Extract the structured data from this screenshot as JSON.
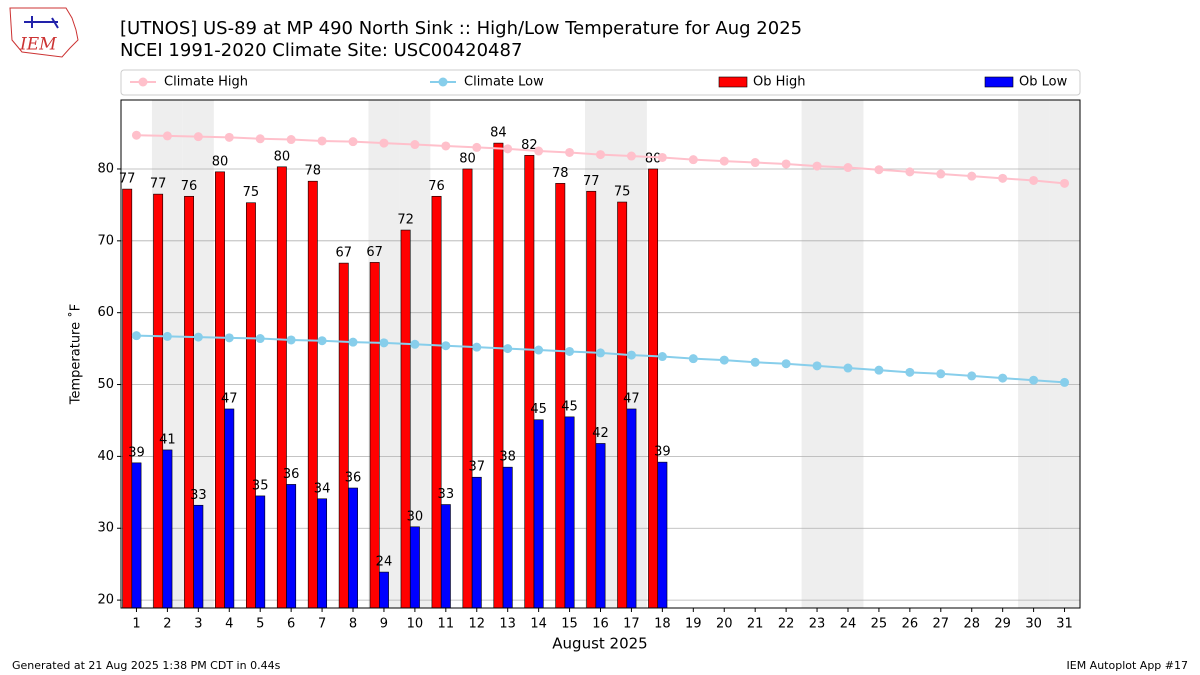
{
  "chart_data": {
    "type": "bar_line",
    "title": "[UTNOS] US-89 at MP 490 North Sink  :: High/Low Temperature for Aug 2025",
    "subtitle": "NCEI 1991-2020 Climate Site: USC00420487",
    "logo_text": "IEM",
    "ylabel": "Temperature ˚F",
    "xlabel": "August 2025",
    "footer_left": "Generated at 21 Aug 2025 1:38 PM CDT in 0.44s",
    "footer_right": "IEM Autoplot App #17",
    "x": [
      1,
      2,
      3,
      4,
      5,
      6,
      7,
      8,
      9,
      10,
      11,
      12,
      13,
      14,
      15,
      16,
      17,
      18,
      19,
      20,
      21,
      22,
      23,
      24,
      25,
      26,
      27,
      28,
      29,
      30,
      31
    ],
    "xlim": [
      0.5,
      31.5
    ],
    "xticks": [
      1,
      2,
      3,
      4,
      5,
      6,
      7,
      8,
      9,
      10,
      11,
      12,
      13,
      14,
      15,
      16,
      17,
      18,
      19,
      20,
      21,
      22,
      23,
      24,
      25,
      26,
      27,
      28,
      29,
      30,
      31
    ],
    "ylim": [
      18.9,
      89.6
    ],
    "yticks": [
      20,
      30,
      40,
      50,
      60,
      70,
      80
    ],
    "grid": true,
    "shaded_days": [
      2,
      3,
      9,
      10,
      16,
      17,
      23,
      24,
      30,
      31
    ],
    "shade_color": "#eeeeee",
    "series": [
      {
        "name": "Climate High",
        "kind": "line",
        "color": "#ffc0cb",
        "values": [
          84.7,
          84.6,
          84.5,
          84.4,
          84.2,
          84.1,
          83.9,
          83.8,
          83.6,
          83.4,
          83.2,
          83.0,
          82.8,
          82.5,
          82.3,
          82.0,
          81.8,
          81.6,
          81.3,
          81.1,
          80.9,
          80.7,
          80.4,
          80.2,
          79.9,
          79.6,
          79.3,
          79.0,
          78.7,
          78.4,
          78.0
        ]
      },
      {
        "name": "Climate Low",
        "kind": "line",
        "color": "#87ceeb",
        "values": [
          56.8,
          56.7,
          56.6,
          56.5,
          56.4,
          56.2,
          56.1,
          55.9,
          55.8,
          55.6,
          55.4,
          55.2,
          55.0,
          54.8,
          54.6,
          54.4,
          54.1,
          53.9,
          53.6,
          53.4,
          53.1,
          52.9,
          52.6,
          52.3,
          52.0,
          51.7,
          51.5,
          51.2,
          50.9,
          50.6,
          50.3
        ]
      },
      {
        "name": "Ob High",
        "kind": "bar",
        "color": "#ff0000",
        "values": [
          77.2,
          76.5,
          76.2,
          79.6,
          75.3,
          80.3,
          78.3,
          66.9,
          67.0,
          71.5,
          76.2,
          80.0,
          83.6,
          81.9,
          78.0,
          76.9,
          75.4,
          80.0,
          null,
          null,
          null,
          null,
          null,
          null,
          null,
          null,
          null,
          null,
          null,
          null,
          null
        ],
        "value_labels": [
          "77",
          "77",
          "76",
          "80",
          "75",
          "80",
          "78",
          "67",
          "67",
          "72",
          "76",
          "80",
          "84",
          "82",
          "78",
          "77",
          "75",
          "80",
          null,
          null,
          null,
          null,
          null,
          null,
          null,
          null,
          null,
          null,
          null,
          null,
          null
        ]
      },
      {
        "name": "Ob Low",
        "kind": "bar",
        "color": "#0000ff",
        "values": [
          39.1,
          40.9,
          33.2,
          46.6,
          34.5,
          36.1,
          34.1,
          35.6,
          23.9,
          30.2,
          33.3,
          37.1,
          38.5,
          45.1,
          45.5,
          41.8,
          46.6,
          39.2,
          null,
          null,
          null,
          null,
          null,
          null,
          null,
          null,
          null,
          null,
          null,
          null,
          null
        ],
        "value_labels": [
          "39",
          "41",
          "33",
          "47",
          "35",
          "36",
          "34",
          "36",
          "24",
          "30",
          "33",
          "37",
          "38",
          "45",
          "45",
          "42",
          "47",
          "39",
          null,
          null,
          null,
          null,
          null,
          null,
          null,
          null,
          null,
          null,
          null,
          null,
          null
        ]
      }
    ]
  }
}
